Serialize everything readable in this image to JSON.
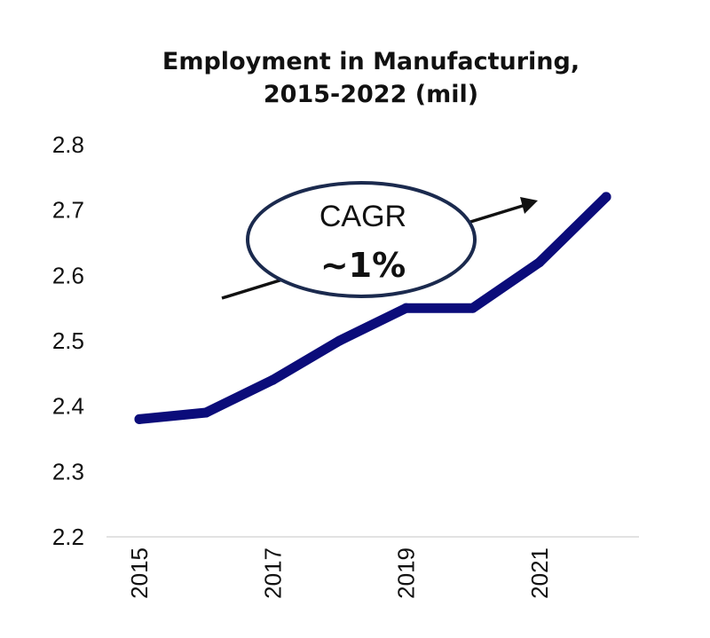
{
  "chart_data": {
    "type": "line",
    "title_lines": [
      "Employment in Manufacturing,",
      "2015-2022 (mil)"
    ],
    "xlabel": "",
    "ylabel": "",
    "x": [
      2015,
      2016,
      2017,
      2018,
      2019,
      2020,
      2021,
      2022
    ],
    "x_tick_labels": [
      "2015",
      "2017",
      "2019",
      "2021"
    ],
    "x_tick_values": [
      2015,
      2017,
      2019,
      2021
    ],
    "y_tick_labels": [
      "2.2",
      "2.3",
      "2.4",
      "2.5",
      "2.6",
      "2.7",
      "2.8"
    ],
    "ylim": [
      2.2,
      2.8
    ],
    "series": [
      {
        "values": [
          2.38,
          2.39,
          2.44,
          2.5,
          2.55,
          2.55,
          2.62,
          2.72
        ],
        "color": "#0b0c7a"
      }
    ],
    "grid": false,
    "annotation": {
      "label": "CAGR",
      "value": "~1%",
      "ellipse_color": "#1b2a4e",
      "arrow_color": "#111111"
    }
  }
}
